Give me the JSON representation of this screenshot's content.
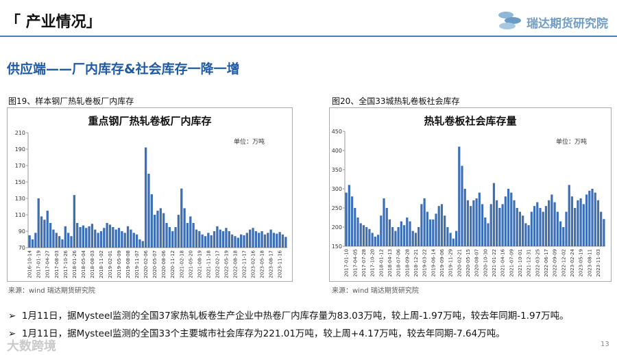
{
  "header": {
    "title": "「 产业情况」",
    "logo": "瑞达期货研究院",
    "page": "13"
  },
  "subtitle": "供应端——厂内库存&社会库存一降一增",
  "figures": [
    {
      "caption": "图19、样本钢厂热轧卷板厂内库存",
      "source": "来源：wind   瑞达期货研究院"
    },
    {
      "caption": "图20、全国33城热轧卷板社会库存",
      "source": "来源：wind   瑞达期货研究院"
    }
  ],
  "bullets": [
    "1月11日，据Mysteel监测的全国37家热轧板卷生产企业中热卷厂内库存量为83.03万吨，较上周-1.97万吨，较去年同期-1.97万吨。",
    "1月11日，据Mysteel监测的全国33个主要城市社会库存为221.01万吨，较上周+4.17万吨，较去年同期-7.64万吨。"
  ],
  "watermark": "大数跨境",
  "chart_data": [
    {
      "type": "bar",
      "title": "重点钢厂热轧卷板厂内库存",
      "annotation": "单位：万吨",
      "color": "#3d6fb6",
      "grid": false,
      "ylim": [
        70,
        210
      ],
      "yticks": [
        70,
        90,
        110,
        130,
        150,
        170,
        190,
        210
      ],
      "categories": [
        "2016-10-14",
        null,
        null,
        "2017-01-19",
        null,
        null,
        "2017-04-27",
        null,
        null,
        "2017-08-03",
        null,
        null,
        "2017-10-26",
        null,
        null,
        "2018-01-26",
        null,
        null,
        "2018-05-04",
        null,
        null,
        "2018-08-03",
        null,
        null,
        "2018-11-02",
        null,
        null,
        "2019-02-01",
        null,
        null,
        "2019-05-09",
        null,
        null,
        "2019-08-08",
        null,
        null,
        "2019-11-07",
        null,
        null,
        "2020-02-06",
        null,
        null,
        "2020-05-07",
        null,
        null,
        "2020-08-06",
        null,
        null,
        "2020-11-12",
        null,
        null,
        "2021-02-18",
        null,
        null,
        "2021-05-20",
        null,
        null,
        "2021-08-19",
        null,
        null,
        "2021-11-18",
        null,
        null,
        "2022-02-17",
        null,
        null,
        "2022-05-19",
        null,
        null,
        "2022-08-18",
        null,
        null,
        "2022-11-17",
        null,
        null,
        "2023-02-16",
        null,
        null,
        "2023-05-18",
        null,
        null,
        "2023-08-17",
        null,
        null,
        "2023-11-16",
        null,
        null
      ],
      "values": [
        85,
        80,
        88,
        130,
        108,
        104,
        115,
        100,
        92,
        88,
        84,
        80,
        96,
        88,
        84,
        134,
        100,
        95,
        97,
        94,
        96,
        99,
        92,
        88,
        90,
        94,
        100,
        98,
        95,
        92,
        94,
        90,
        88,
        96,
        92,
        88,
        86,
        80,
        78,
        192,
        160,
        135,
        110,
        115,
        118,
        112,
        100,
        95,
        90,
        95,
        110,
        142,
        118,
        100,
        108,
        100,
        92,
        90,
        86,
        84,
        88,
        85,
        90,
        96,
        92,
        90,
        94,
        90,
        86,
        84,
        82,
        86,
        85,
        88,
        92,
        94,
        90,
        88,
        90,
        86,
        88,
        92,
        88,
        87,
        89,
        86,
        83.03
      ]
    },
    {
      "type": "bar",
      "title": "热轧卷板社会库存量",
      "annotation": "单位：万吨",
      "color": "#3d6fb6",
      "grid": false,
      "ylim": [
        150,
        450
      ],
      "yticks": [
        150,
        200,
        250,
        300,
        350,
        400,
        450
      ],
      "categories": [
        "2017-01-10",
        null,
        null,
        "2017-04-05",
        null,
        null,
        "2017-07-28",
        null,
        null,
        "2017-10-20",
        null,
        null,
        "2018-01-12",
        null,
        null,
        "2018-04-13",
        null,
        null,
        "2018-07-06",
        null,
        null,
        "2018-09-28",
        null,
        null,
        "2018-12-21",
        null,
        null,
        "2019-03-22",
        null,
        null,
        "2019-06-14",
        null,
        null,
        "2019-09-06",
        null,
        null,
        "2019-11-29",
        null,
        null,
        "2020-02-21",
        null,
        null,
        "2020-05-15",
        null,
        null,
        "2020-08-07",
        null,
        null,
        "2020-10-30",
        null,
        null,
        "2021-01-22",
        null,
        null,
        "2021-04-16",
        null,
        null,
        "2021-07-09",
        null,
        null,
        "2021-10-01",
        null,
        null,
        "2021-12-31",
        null,
        null,
        "2022-03-25",
        null,
        null,
        "2022-06-17",
        null,
        null,
        "2022-09-09",
        null,
        null,
        "2022-12-02",
        null,
        null,
        "2023-02-24",
        null,
        null,
        "2023-05-19",
        null,
        null,
        "2023-08-11",
        null,
        null,
        "2023-11-03",
        null,
        null
      ],
      "values": [
        290,
        310,
        280,
        250,
        225,
        210,
        205,
        200,
        195,
        185,
        175,
        180,
        230,
        275,
        250,
        220,
        200,
        190,
        200,
        215,
        205,
        225,
        215,
        190,
        185,
        200,
        260,
        275,
        240,
        220,
        220,
        235,
        255,
        260,
        230,
        200,
        185,
        170,
        190,
        410,
        360,
        300,
        270,
        255,
        270,
        275,
        290,
        260,
        225,
        210,
        260,
        315,
        270,
        250,
        260,
        280,
        300,
        290,
        270,
        250,
        240,
        230,
        210,
        205,
        240,
        255,
        265,
        250,
        240,
        255,
        270,
        285,
        265,
        240,
        215,
        200,
        240,
        310,
        280,
        250,
        270,
        275,
        260,
        285,
        295,
        300,
        290,
        270,
        240,
        221.01
      ]
    }
  ]
}
